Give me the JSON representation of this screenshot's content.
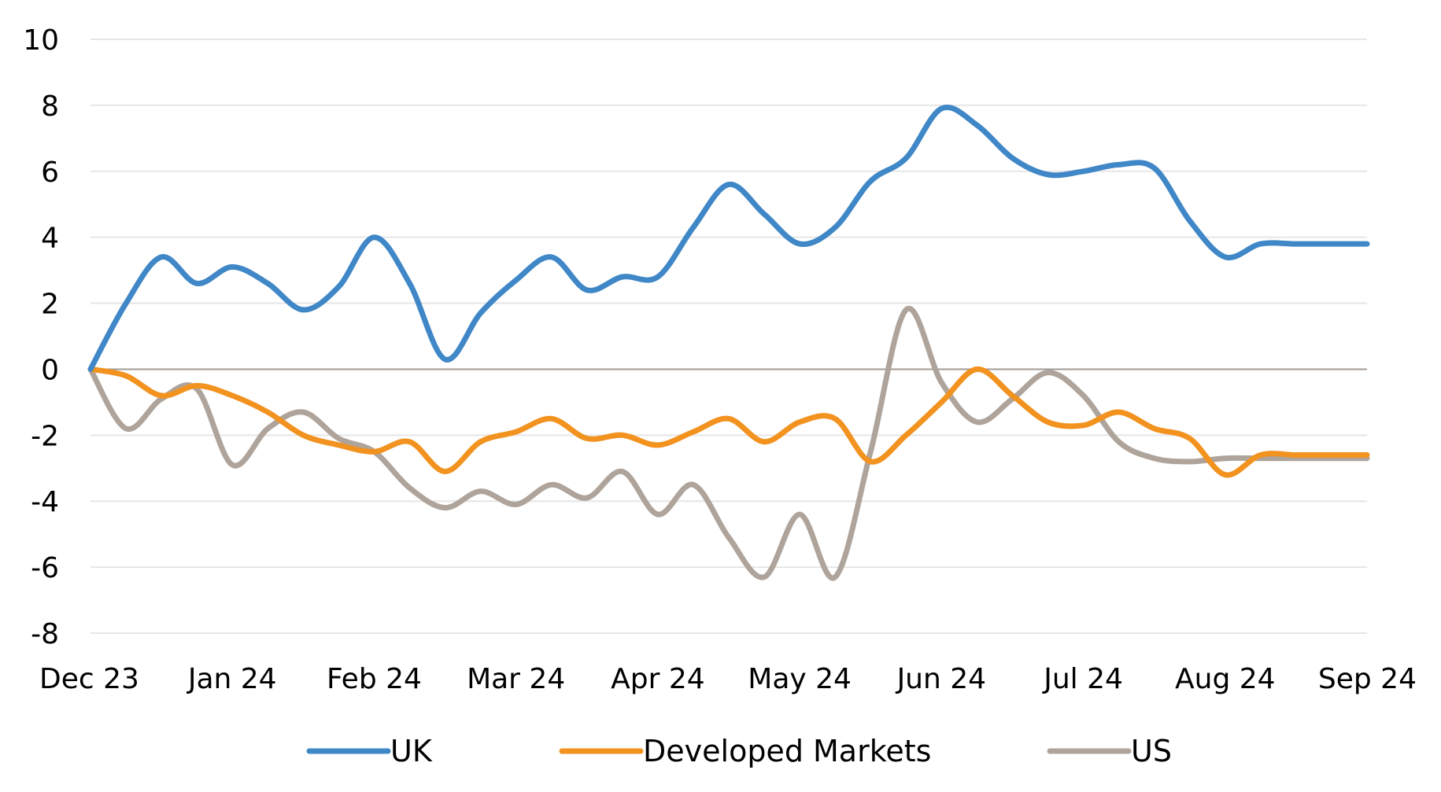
{
  "chart_data": {
    "type": "line",
    "title": "",
    "xlabel": "",
    "ylabel": "",
    "ylim": [
      -8,
      10
    ],
    "yticks": [
      "10",
      "8",
      "6",
      "4",
      "2",
      "0",
      "-2",
      "-4",
      "-6",
      "-8"
    ],
    "xtick_labels": [
      "Dec 23",
      "Jan 24",
      "Feb 24",
      "Mar 24",
      "Apr 24",
      "May 24",
      "Jun 24",
      "Jul 24",
      "Aug 24",
      "Sep 24"
    ],
    "x": [
      0,
      0.25,
      0.5,
      0.75,
      1,
      1.25,
      1.5,
      1.75,
      2,
      2.25,
      2.5,
      2.75,
      3,
      3.25,
      3.5,
      3.75,
      4,
      4.25,
      4.5,
      4.75,
      5,
      5.25,
      5.5,
      5.75,
      6,
      6.25,
      6.5,
      6.75,
      7,
      7.25,
      7.5,
      7.75,
      8,
      8.25,
      8.5,
      8.75,
      9
    ],
    "grid": true,
    "legend_position": "bottom",
    "colors": {
      "UK": "#3f87c7",
      "Developed Markets": "#f2921f",
      "US": "#aea49b",
      "grid": "#e6e6e6",
      "zero_line": "#a09a94"
    },
    "series": [
      {
        "name": "UK",
        "values": [
          0.0,
          2.0,
          3.4,
          2.6,
          3.1,
          2.6,
          1.8,
          2.5,
          4.0,
          2.6,
          0.3,
          1.7,
          2.7,
          3.4,
          2.4,
          2.8,
          2.8,
          4.3,
          5.6,
          4.7,
          3.8,
          4.3,
          5.7,
          6.4,
          7.9,
          7.4,
          6.4,
          5.9,
          6.0,
          6.2,
          6.1,
          4.5,
          3.4,
          3.8,
          3.8,
          3.8,
          3.8
        ]
      },
      {
        "name": "Developed Markets",
        "values": [
          0.0,
          -0.2,
          -0.8,
          -0.5,
          -0.8,
          -1.3,
          -2.0,
          -2.3,
          -2.5,
          -2.2,
          -3.1,
          -2.2,
          -1.9,
          -1.5,
          -2.1,
          -2.0,
          -2.3,
          -1.9,
          -1.5,
          -2.2,
          -1.6,
          -1.5,
          -2.8,
          -2.0,
          -1.0,
          0.0,
          -0.8,
          -1.6,
          -1.7,
          -1.3,
          -1.8,
          -2.1,
          -3.2,
          -2.6,
          -2.6,
          -2.6,
          -2.6
        ]
      },
      {
        "name": "US",
        "values": [
          0.0,
          -1.8,
          -0.9,
          -0.6,
          -2.9,
          -1.8,
          -1.3,
          -2.1,
          -2.5,
          -3.6,
          -4.2,
          -3.7,
          -4.1,
          -3.5,
          -3.9,
          -3.1,
          -4.4,
          -3.5,
          -5.1,
          -6.3,
          -4.4,
          -6.3,
          -2.5,
          1.8,
          -0.4,
          -1.6,
          -0.9,
          -0.1,
          -0.8,
          -2.2,
          -2.7,
          -2.8,
          -2.7,
          -2.7,
          -2.7,
          -2.7,
          -2.7
        ]
      }
    ]
  }
}
